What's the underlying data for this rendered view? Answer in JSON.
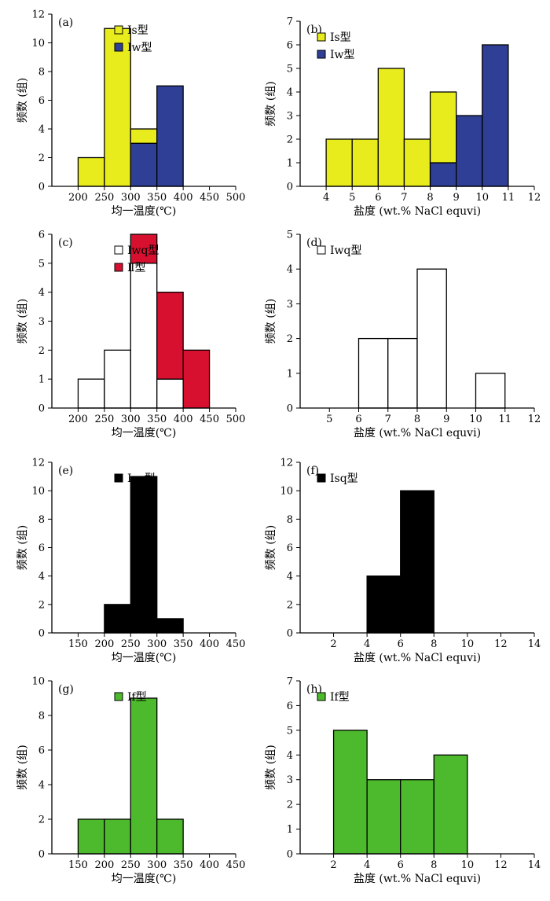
{
  "colors": {
    "Is": "#e8ec1c",
    "Iw": "#2e3f95",
    "Iwq": "#ffffff",
    "II": "#d8102f",
    "Isq": "#000000",
    "If": "#4dba2d"
  },
  "chart_data": [
    {
      "type": "bar",
      "panel": "(a)",
      "xlabel": "均一温度(℃)",
      "ylabel": "频数 (组)",
      "xlim": [
        150,
        500
      ],
      "ylim": [
        0,
        12
      ],
      "xticks": [
        200,
        250,
        300,
        350,
        400,
        450,
        500
      ],
      "yticks": [
        0,
        2,
        4,
        6,
        8,
        10,
        12
      ],
      "legend": [
        {
          "label": "Ⅰs型",
          "color_key": "Is"
        },
        {
          "label": "Ⅰw型",
          "color_key": "Iw"
        }
      ],
      "bins": [
        {
          "from": 200,
          "to": 250,
          "stack": [
            {
              "key": "Is",
              "value": 2
            }
          ]
        },
        {
          "from": 250,
          "to": 300,
          "stack": [
            {
              "key": "Is",
              "value": 11
            }
          ]
        },
        {
          "from": 300,
          "to": 350,
          "stack": [
            {
              "key": "Iw",
              "value": 3
            },
            {
              "key": "Is",
              "value": 1
            }
          ]
        },
        {
          "from": 350,
          "to": 400,
          "stack": [
            {
              "key": "Iw",
              "value": 7
            }
          ]
        }
      ]
    },
    {
      "type": "bar",
      "panel": "(b)",
      "xlabel": "盐度 (wt.% NaCl equvi)",
      "ylabel": "频数 (组)",
      "xlim": [
        3,
        12
      ],
      "ylim": [
        0,
        7
      ],
      "xticks": [
        4,
        5,
        6,
        7,
        8,
        9,
        10,
        11,
        12
      ],
      "yticks": [
        0,
        1,
        2,
        3,
        4,
        5,
        6,
        7
      ],
      "legend": [
        {
          "label": "Ⅰs型",
          "color_key": "Is"
        },
        {
          "label": "Ⅰw型",
          "color_key": "Iw"
        }
      ],
      "bins": [
        {
          "from": 4,
          "to": 5,
          "stack": [
            {
              "key": "Is",
              "value": 2
            }
          ]
        },
        {
          "from": 5,
          "to": 6,
          "stack": [
            {
              "key": "Is",
              "value": 2
            }
          ]
        },
        {
          "from": 6,
          "to": 7,
          "stack": [
            {
              "key": "Is",
              "value": 5
            }
          ]
        },
        {
          "from": 7,
          "to": 8,
          "stack": [
            {
              "key": "Is",
              "value": 2
            }
          ]
        },
        {
          "from": 8,
          "to": 9,
          "stack": [
            {
              "key": "Iw",
              "value": 1
            },
            {
              "key": "Is",
              "value": 3
            }
          ]
        },
        {
          "from": 9,
          "to": 10,
          "stack": [
            {
              "key": "Iw",
              "value": 3
            }
          ]
        },
        {
          "from": 10,
          "to": 11,
          "stack": [
            {
              "key": "Iw",
              "value": 6
            }
          ]
        }
      ]
    },
    {
      "type": "bar",
      "panel": "(c)",
      "xlabel": "均一温度(℃)",
      "ylabel": "频数 (组)",
      "xlim": [
        150,
        500
      ],
      "ylim": [
        0,
        6
      ],
      "xticks": [
        200,
        250,
        300,
        350,
        400,
        450,
        500
      ],
      "yticks": [
        0,
        1,
        2,
        3,
        4,
        5,
        6
      ],
      "legend": [
        {
          "label": "Ⅰwq型",
          "color_key": "Iwq"
        },
        {
          "label": "Ⅱ型",
          "color_key": "II"
        }
      ],
      "bins": [
        {
          "from": 200,
          "to": 250,
          "stack": [
            {
              "key": "Iwq",
              "value": 1
            }
          ]
        },
        {
          "from": 250,
          "to": 300,
          "stack": [
            {
              "key": "Iwq",
              "value": 2
            }
          ]
        },
        {
          "from": 300,
          "to": 350,
          "stack": [
            {
              "key": "Iwq",
              "value": 5
            },
            {
              "key": "II",
              "value": 1
            }
          ]
        },
        {
          "from": 350,
          "to": 400,
          "stack": [
            {
              "key": "Iwq",
              "value": 1
            },
            {
              "key": "II",
              "value": 3
            }
          ]
        },
        {
          "from": 400,
          "to": 450,
          "stack": [
            {
              "key": "II",
              "value": 2
            }
          ]
        }
      ]
    },
    {
      "type": "bar",
      "panel": "(d)",
      "xlabel": "盐度 (wt.% NaCl equvi)",
      "ylabel": "频数 (组)",
      "xlim": [
        4,
        12
      ],
      "ylim": [
        0,
        5
      ],
      "xticks": [
        5,
        6,
        7,
        8,
        9,
        10,
        11,
        12
      ],
      "yticks": [
        0,
        1,
        2,
        3,
        4,
        5
      ],
      "legend": [
        {
          "label": "Ⅰwq型",
          "color_key": "Iwq"
        }
      ],
      "bins": [
        {
          "from": 6,
          "to": 7,
          "stack": [
            {
              "key": "Iwq",
              "value": 2
            }
          ]
        },
        {
          "from": 7,
          "to": 8,
          "stack": [
            {
              "key": "Iwq",
              "value": 2
            }
          ]
        },
        {
          "from": 8,
          "to": 9,
          "stack": [
            {
              "key": "Iwq",
              "value": 4
            }
          ]
        },
        {
          "from": 10,
          "to": 11,
          "stack": [
            {
              "key": "Iwq",
              "value": 1
            }
          ]
        }
      ]
    },
    {
      "type": "bar",
      "panel": "(e)",
      "xlabel": "均一温度(℃)",
      "ylabel": "频数 (组)",
      "xlim": [
        100,
        450
      ],
      "ylim": [
        0,
        12
      ],
      "xticks": [
        150,
        200,
        250,
        300,
        350,
        400,
        450
      ],
      "yticks": [
        0,
        2,
        4,
        6,
        8,
        10,
        12
      ],
      "legend": [
        {
          "label": "Ⅰsq型",
          "color_key": "Isq"
        }
      ],
      "bins": [
        {
          "from": 200,
          "to": 250,
          "stack": [
            {
              "key": "Isq",
              "value": 2
            }
          ]
        },
        {
          "from": 250,
          "to": 300,
          "stack": [
            {
              "key": "Isq",
              "value": 11
            }
          ]
        },
        {
          "from": 300,
          "to": 350,
          "stack": [
            {
              "key": "Isq",
              "value": 1
            }
          ]
        }
      ]
    },
    {
      "type": "bar",
      "panel": "(f)",
      "xlabel": "盐度 (wt.% NaCl equvi)",
      "ylabel": "频数 (组)",
      "xlim": [
        0,
        14
      ],
      "ylim": [
        0,
        12
      ],
      "xticks": [
        2,
        4,
        6,
        8,
        10,
        12,
        14
      ],
      "yticks": [
        0,
        2,
        4,
        6,
        8,
        10,
        12
      ],
      "legend": [
        {
          "label": "Ⅰsq型",
          "color_key": "Isq"
        }
      ],
      "bins": [
        {
          "from": 4,
          "to": 6,
          "stack": [
            {
              "key": "Isq",
              "value": 4
            }
          ]
        },
        {
          "from": 6,
          "to": 8,
          "stack": [
            {
              "key": "Isq",
              "value": 10
            }
          ]
        }
      ]
    },
    {
      "type": "bar",
      "panel": "(g)",
      "xlabel": "均一温度(℃)",
      "ylabel": "频数 (组)",
      "xlim": [
        100,
        450
      ],
      "ylim": [
        0,
        10
      ],
      "xticks": [
        150,
        200,
        250,
        300,
        350,
        400,
        450
      ],
      "yticks": [
        0,
        2,
        4,
        6,
        8,
        10
      ],
      "legend": [
        {
          "label": "Ⅰf型",
          "color_key": "If"
        }
      ],
      "bins": [
        {
          "from": 150,
          "to": 200,
          "stack": [
            {
              "key": "If",
              "value": 2
            }
          ]
        },
        {
          "from": 200,
          "to": 250,
          "stack": [
            {
              "key": "If",
              "value": 2
            }
          ]
        },
        {
          "from": 250,
          "to": 300,
          "stack": [
            {
              "key": "If",
              "value": 9
            }
          ]
        },
        {
          "from": 300,
          "to": 350,
          "stack": [
            {
              "key": "If",
              "value": 2
            }
          ]
        }
      ]
    },
    {
      "type": "bar",
      "panel": "(h)",
      "xlabel": "盐度 (wt.% NaCl equvi)",
      "ylabel": "频数 (组)",
      "xlim": [
        0,
        14
      ],
      "ylim": [
        0,
        7
      ],
      "xticks": [
        2,
        4,
        6,
        8,
        10,
        12,
        14
      ],
      "yticks": [
        0,
        1,
        2,
        3,
        4,
        5,
        6,
        7
      ],
      "legend": [
        {
          "label": "Ⅰf型",
          "color_key": "If"
        }
      ],
      "bins": [
        {
          "from": 2,
          "to": 4,
          "stack": [
            {
              "key": "If",
              "value": 5
            }
          ]
        },
        {
          "from": 4,
          "to": 6,
          "stack": [
            {
              "key": "If",
              "value": 3
            }
          ]
        },
        {
          "from": 6,
          "to": 8,
          "stack": [
            {
              "key": "If",
              "value": 3
            }
          ]
        },
        {
          "from": 8,
          "to": 10,
          "stack": [
            {
              "key": "If",
              "value": 4
            }
          ]
        }
      ]
    }
  ]
}
